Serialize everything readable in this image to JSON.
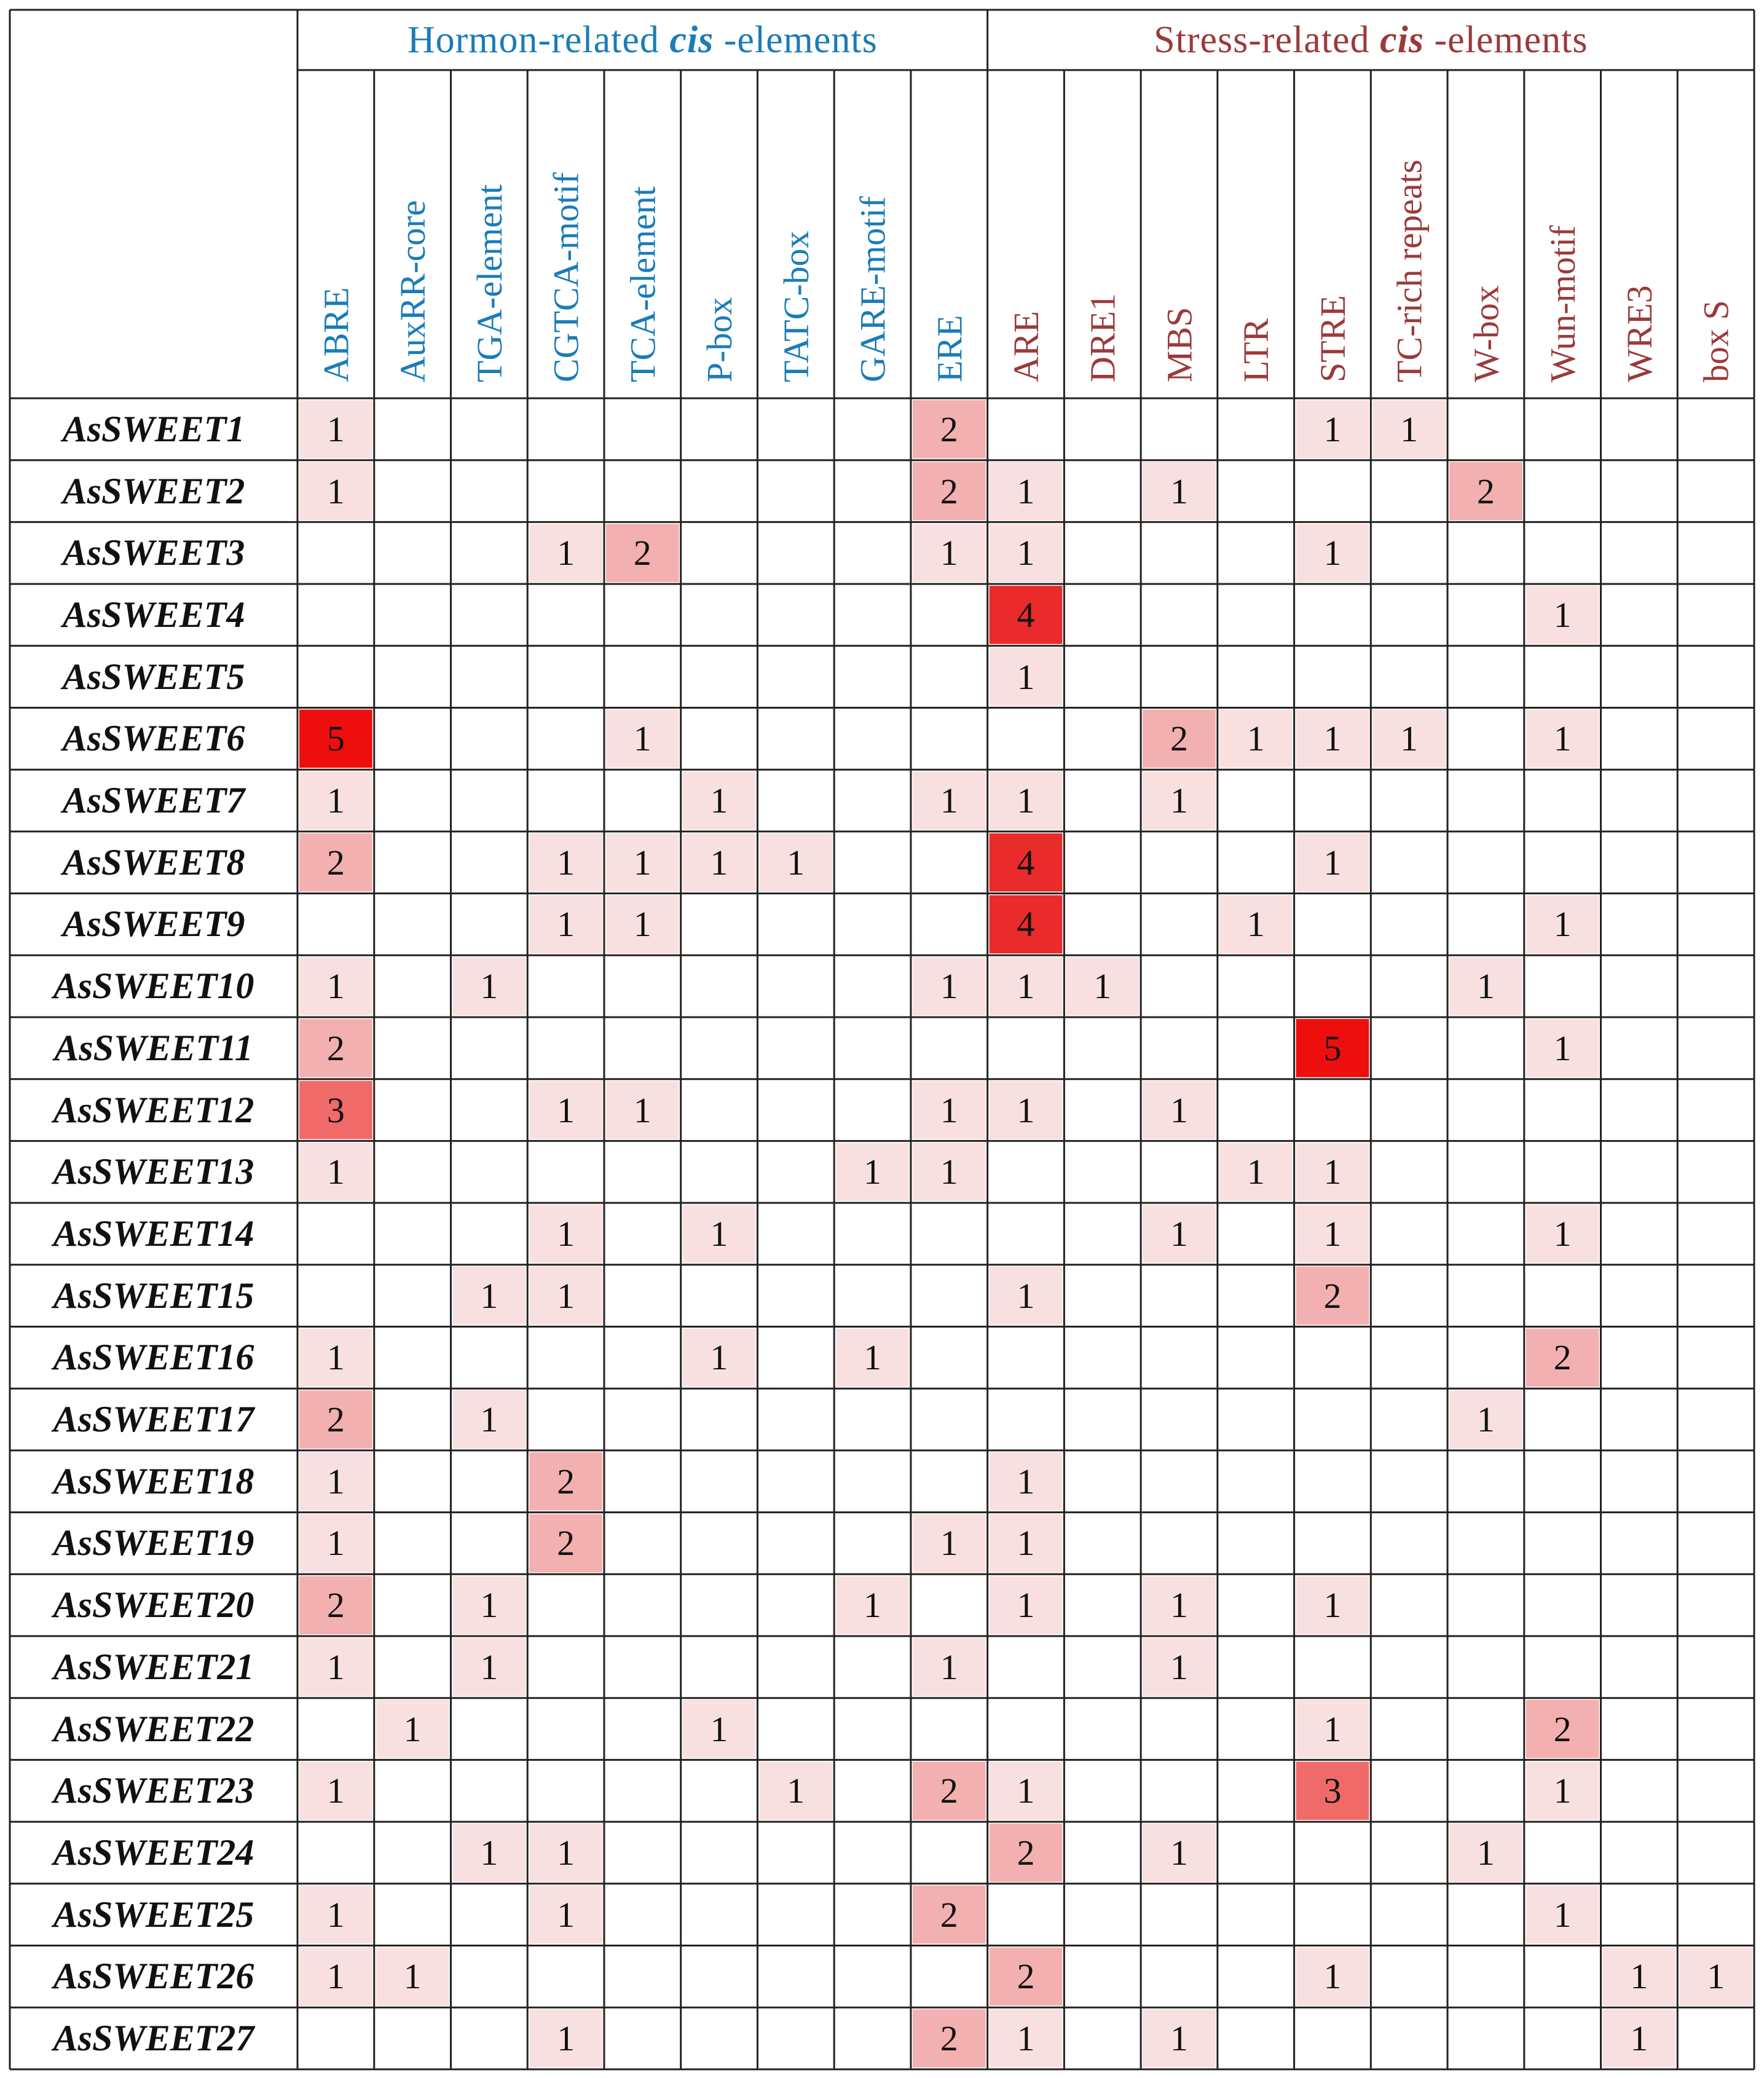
{
  "groups": [
    {
      "prefix": "Hormon-related ",
      "italic": "cis",
      "suffix": " -elements",
      "color": "#1a7cb8",
      "span": 9
    },
    {
      "prefix": "Stress-related ",
      "italic": "cis",
      "suffix": " -elements",
      "color": "#9b3a3a",
      "span": 10
    }
  ],
  "columns": [
    "ABRE",
    "AuxRR-core",
    "TGA-element",
    "CGTCA-motif",
    "TCA-element",
    "P-box",
    "TATC-box",
    "GARE-motif",
    "ERE",
    "ARE",
    "DRE1",
    "MBS",
    "LTR",
    "STRE",
    "TC-rich repeats",
    "W-box",
    "Wun-motif",
    "WRE3",
    "box S"
  ],
  "colors": {
    "hormone": "#1a7cb8",
    "stress": "#9b3a3a",
    "grid": "#222222",
    "level1": "#f9e0e0",
    "level2": "#f3b0b0",
    "level3": "#f06a6a",
    "level4": "#e92b2b",
    "level5": "#ee0e0e"
  },
  "rows": [
    {
      "label": "AsSWEET1",
      "values": {
        "ABRE": 1,
        "ERE": 2,
        "STRE": 1,
        "TC-rich repeats": 1
      }
    },
    {
      "label": "AsSWEET2",
      "values": {
        "ABRE": 1,
        "ERE": 2,
        "ARE": 1,
        "MBS": 1,
        "W-box": 2
      }
    },
    {
      "label": "AsSWEET3",
      "values": {
        "CGTCA-motif": 1,
        "TCA-element": 2,
        "ERE": 1,
        "ARE": 1,
        "STRE": 1
      }
    },
    {
      "label": "AsSWEET4",
      "values": {
        "ARE": 4,
        "Wun-motif": 1
      }
    },
    {
      "label": "AsSWEET5",
      "values": {
        "ARE": 1
      }
    },
    {
      "label": "AsSWEET6",
      "values": {
        "ABRE": 5,
        "TCA-element": 1,
        "MBS": 2,
        "LTR": 1,
        "STRE": 1,
        "TC-rich repeats": 1,
        "Wun-motif": 1
      }
    },
    {
      "label": "AsSWEET7",
      "values": {
        "ABRE": 1,
        "P-box": 1,
        "ERE": 1,
        "ARE": 1,
        "MBS": 1
      }
    },
    {
      "label": "AsSWEET8",
      "values": {
        "ABRE": 2,
        "CGTCA-motif": 1,
        "TCA-element": 1,
        "P-box": 1,
        "TATC-box": 1,
        "ARE": 4,
        "STRE": 1
      }
    },
    {
      "label": "AsSWEET9",
      "values": {
        "CGTCA-motif": 1,
        "TCA-element": 1,
        "ARE": 4,
        "LTR": 1,
        "Wun-motif": 1
      }
    },
    {
      "label": "AsSWEET10",
      "values": {
        "ABRE": 1,
        "TGA-element": 1,
        "ERE": 1,
        "ARE": 1,
        "DRE1": 1,
        "W-box": 1
      }
    },
    {
      "label": "AsSWEET11",
      "values": {
        "ABRE": 2,
        "STRE": 5,
        "Wun-motif": 1
      }
    },
    {
      "label": "AsSWEET12",
      "values": {
        "ABRE": 3,
        "CGTCA-motif": 1,
        "TCA-element": 1,
        "ERE": 1,
        "ARE": 1,
        "MBS": 1
      }
    },
    {
      "label": "AsSWEET13",
      "values": {
        "ABRE": 1,
        "GARE-motif": 1,
        "ERE": 1,
        "LTR": 1,
        "STRE": 1
      }
    },
    {
      "label": "AsSWEET14",
      "values": {
        "CGTCA-motif": 1,
        "P-box": 1,
        "MBS": 1,
        "STRE": 1,
        "Wun-motif": 1
      }
    },
    {
      "label": "AsSWEET15",
      "values": {
        "TGA-element": 1,
        "CGTCA-motif": 1,
        "ARE": 1,
        "STRE": 2
      }
    },
    {
      "label": "AsSWEET16",
      "values": {
        "ABRE": 1,
        "P-box": 1,
        "GARE-motif": 1,
        "Wun-motif": 2
      }
    },
    {
      "label": "AsSWEET17",
      "values": {
        "ABRE": 2,
        "TGA-element": 1,
        "W-box": 1
      }
    },
    {
      "label": "AsSWEET18",
      "values": {
        "ABRE": 1,
        "CGTCA-motif": 2,
        "ARE": 1
      }
    },
    {
      "label": "AsSWEET19",
      "values": {
        "ABRE": 1,
        "CGTCA-motif": 2,
        "ERE": 1,
        "ARE": 1
      }
    },
    {
      "label": "AsSWEET20",
      "values": {
        "ABRE": 2,
        "TGA-element": 1,
        "GARE-motif": 1,
        "ARE": 1,
        "MBS": 1,
        "STRE": 1
      }
    },
    {
      "label": "AsSWEET21",
      "values": {
        "ABRE": 1,
        "TGA-element": 1,
        "ERE": 1,
        "MBS": 1
      }
    },
    {
      "label": "AsSWEET22",
      "values": {
        "AuxRR-core": 1,
        "P-box": 1,
        "STRE": 1,
        "Wun-motif": 2
      }
    },
    {
      "label": "AsSWEET23",
      "values": {
        "ABRE": 1,
        "TATC-box": 1,
        "ERE": 2,
        "ARE": 1,
        "STRE": 3,
        "Wun-motif": 1
      }
    },
    {
      "label": "AsSWEET24",
      "values": {
        "TGA-element": 1,
        "CGTCA-motif": 1,
        "ARE": 2,
        "MBS": 1,
        "W-box": 1
      }
    },
    {
      "label": "AsSWEET25",
      "values": {
        "ABRE": 1,
        "CGTCA-motif": 1,
        "ERE": 2,
        "Wun-motif": 1
      }
    },
    {
      "label": "AsSWEET26",
      "values": {
        "ABRE": 1,
        "AuxRR-core": 1,
        "ARE": 2,
        "STRE": 1,
        "WRE3": 1,
        "box S": 1
      }
    },
    {
      "label": "AsSWEET27",
      "values": {
        "CGTCA-motif": 1,
        "ERE": 2,
        "ARE": 1,
        "MBS": 1,
        "WRE3": 1
      }
    }
  ]
}
